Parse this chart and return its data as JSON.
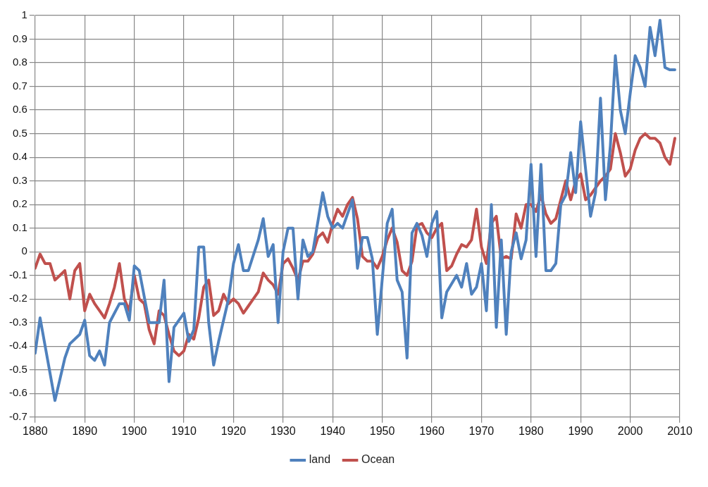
{
  "chart_data": {
    "type": "line",
    "xlim": [
      1880,
      2010
    ],
    "xticks": [
      1880,
      1890,
      1900,
      1910,
      1920,
      1930,
      1940,
      1950,
      1960,
      1970,
      1980,
      1990,
      2000,
      2010
    ],
    "ylim": [
      -0.7,
      1
    ],
    "yticks": [
      -0.7,
      -0.6,
      -0.5,
      -0.4,
      -0.3,
      -0.2,
      -0.1,
      0,
      0.1,
      0.2,
      0.3,
      0.4,
      0.5,
      0.6,
      0.7,
      0.8,
      0.9,
      1
    ],
    "grid": true,
    "legend": "bottom",
    "marker": "none",
    "line_style": "solid",
    "series": [
      {
        "name": "land",
        "color": "#4f81bd",
        "x": [
          1880,
          1881,
          1884,
          1886,
          1887,
          1889,
          1890,
          1891,
          1892,
          1893,
          1894,
          1895,
          1897,
          1898,
          1899,
          1900,
          1901,
          1903,
          1905,
          1906,
          1907,
          1908,
          1910,
          1911,
          1912,
          1913,
          1914,
          1915,
          1916,
          1917,
          1919,
          1920,
          1921,
          1922,
          1923,
          1925,
          1926,
          1927,
          1928,
          1929,
          1930,
          1931,
          1932,
          1933,
          1934,
          1935,
          1936,
          1938,
          1939,
          1940,
          1941,
          1942,
          1944,
          1945,
          1946,
          1947,
          1948,
          1949,
          1951,
          1952,
          1953,
          1954,
          1955,
          1956,
          1957,
          1958,
          1959,
          1960,
          1961,
          1962,
          1963,
          1965,
          1966,
          1967,
          1968,
          1969,
          1970,
          1971,
          1972,
          1973,
          1974,
          1975,
          1976,
          1977,
          1978,
          1979,
          1980,
          1981,
          1982,
          1983,
          1984,
          1985,
          1986,
          1987,
          1988,
          1989,
          1990,
          1991,
          1992,
          1993,
          1994,
          1995,
          1996,
          1997,
          1998,
          1999,
          2000,
          2001,
          2002,
          2003,
          2004,
          2005,
          2006,
          2007,
          2008,
          2009
        ],
        "values": [
          -0.43,
          -0.28,
          -0.63,
          -0.45,
          -0.39,
          -0.35,
          -0.29,
          -0.44,
          -0.46,
          -0.42,
          -0.48,
          -0.3,
          -0.22,
          -0.22,
          -0.29,
          -0.06,
          -0.08,
          -0.3,
          -0.3,
          -0.12,
          -0.55,
          -0.32,
          -0.26,
          -0.38,
          -0.33,
          0.02,
          0.02,
          -0.3,
          -0.48,
          -0.38,
          -0.2,
          -0.05,
          0.03,
          -0.08,
          -0.08,
          0.05,
          0.14,
          -0.02,
          0.03,
          -0.3,
          0.0,
          0.1,
          0.1,
          -0.2,
          0.05,
          -0.02,
          0.0,
          0.25,
          0.15,
          0.1,
          0.12,
          0.1,
          0.22,
          -0.07,
          0.06,
          0.06,
          -0.03,
          -0.35,
          0.12,
          0.18,
          -0.12,
          -0.17,
          -0.45,
          0.08,
          0.12,
          0.07,
          -0.02,
          0.12,
          0.17,
          -0.28,
          -0.17,
          -0.1,
          -0.15,
          -0.05,
          -0.18,
          -0.15,
          -0.05,
          -0.25,
          0.2,
          -0.32,
          0.05,
          -0.35,
          0.0,
          0.08,
          -0.03,
          0.05,
          0.37,
          -0.02,
          0.37,
          -0.08,
          -0.08,
          -0.05,
          0.2,
          0.24,
          0.42,
          0.25,
          0.55,
          0.35,
          0.15,
          0.25,
          0.65,
          0.22,
          0.45,
          0.83,
          0.6,
          0.5,
          0.67,
          0.83,
          0.78,
          0.7,
          0.95,
          0.83,
          0.98,
          0.78,
          0.77,
          0.77
        ]
      },
      {
        "name": "Ocean",
        "color": "#c0504d",
        "x": [
          1880,
          1881,
          1882,
          1883,
          1884,
          1885,
          1886,
          1887,
          1888,
          1889,
          1890,
          1891,
          1892,
          1893,
          1894,
          1895,
          1896,
          1897,
          1898,
          1899,
          1900,
          1901,
          1902,
          1903,
          1904,
          1905,
          1906,
          1907,
          1908,
          1909,
          1910,
          1911,
          1912,
          1913,
          1914,
          1915,
          1916,
          1917,
          1918,
          1919,
          1920,
          1921,
          1922,
          1923,
          1924,
          1925,
          1926,
          1927,
          1928,
          1929,
          1930,
          1931,
          1932,
          1933,
          1934,
          1935,
          1936,
          1937,
          1938,
          1939,
          1940,
          1941,
          1942,
          1943,
          1944,
          1945,
          1946,
          1947,
          1948,
          1949,
          1950,
          1951,
          1952,
          1953,
          1954,
          1955,
          1956,
          1957,
          1958,
          1959,
          1960,
          1961,
          1962,
          1963,
          1964,
          1965,
          1966,
          1967,
          1968,
          1969,
          1970,
          1971,
          1972,
          1973,
          1974,
          1975,
          1976,
          1977,
          1978,
          1979,
          1980,
          1981,
          1982,
          1983,
          1984,
          1985,
          1986,
          1987,
          1988,
          1989,
          1990,
          1991,
          1992,
          1993,
          1994,
          1995,
          1996,
          1997,
          1998,
          1999,
          2000,
          2001,
          2002,
          2003,
          2004,
          2005,
          2006,
          2007,
          2008,
          2009
        ],
        "values": [
          -0.07,
          -0.01,
          -0.05,
          -0.05,
          -0.12,
          -0.1,
          -0.08,
          -0.2,
          -0.08,
          -0.05,
          -0.25,
          -0.18,
          -0.22,
          -0.25,
          -0.28,
          -0.22,
          -0.15,
          -0.05,
          -0.2,
          -0.25,
          -0.1,
          -0.2,
          -0.22,
          -0.33,
          -0.39,
          -0.25,
          -0.27,
          -0.35,
          -0.42,
          -0.44,
          -0.42,
          -0.35,
          -0.37,
          -0.28,
          -0.15,
          -0.12,
          -0.27,
          -0.25,
          -0.18,
          -0.22,
          -0.2,
          -0.22,
          -0.26,
          -0.23,
          -0.2,
          -0.17,
          -0.09,
          -0.12,
          -0.14,
          -0.18,
          -0.05,
          -0.03,
          -0.07,
          -0.12,
          -0.04,
          -0.04,
          -0.01,
          0.06,
          0.08,
          0.04,
          0.12,
          0.18,
          0.15,
          0.2,
          0.23,
          0.14,
          -0.02,
          -0.04,
          -0.04,
          -0.07,
          -0.02,
          0.05,
          0.1,
          0.04,
          -0.08,
          -0.1,
          -0.04,
          0.11,
          0.12,
          0.08,
          0.06,
          0.1,
          0.12,
          -0.08,
          -0.06,
          -0.01,
          0.03,
          0.02,
          0.05,
          0.18,
          0.02,
          -0.05,
          0.12,
          0.15,
          -0.03,
          -0.02,
          -0.03,
          0.16,
          0.1,
          0.2,
          0.2,
          0.17,
          0.24,
          0.16,
          0.12,
          0.14,
          0.22,
          0.3,
          0.22,
          0.3,
          0.33,
          0.22,
          0.24,
          0.27,
          0.3,
          0.32,
          0.35,
          0.5,
          0.42,
          0.32,
          0.35,
          0.43,
          0.48,
          0.5,
          0.48,
          0.48,
          0.46,
          0.4,
          0.37,
          0.48
        ]
      }
    ]
  }
}
